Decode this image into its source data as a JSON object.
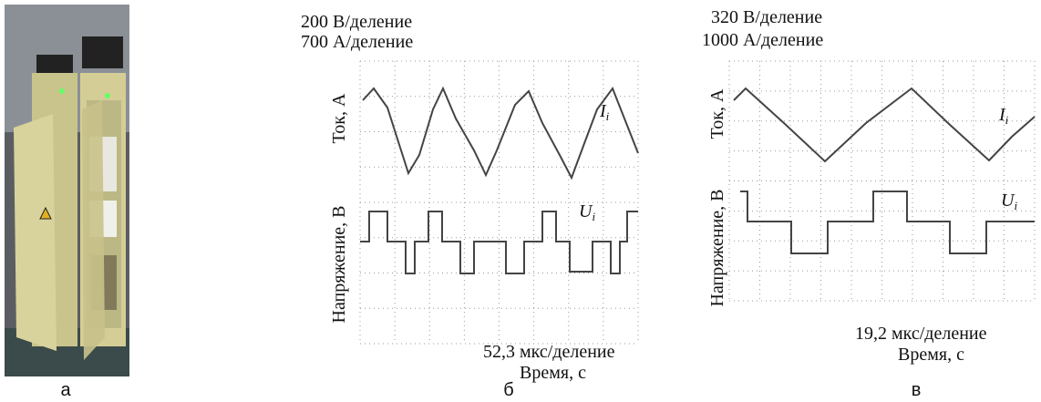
{
  "panel_a": {
    "label": "а"
  },
  "panel_b": {
    "scale_voltage": "200 В/деление",
    "scale_current": "700 А/деление",
    "y_label_current": "Ток, А",
    "y_label_voltage": "Напряжение, В",
    "current_trace": {
      "main": "I",
      "sub": "i"
    },
    "voltage_trace": {
      "main": "U",
      "sub": "i"
    },
    "time_scale": "52,3 мкс/деление",
    "x_label": "Время, с",
    "label": "б"
  },
  "panel_c": {
    "scale_voltage": "320 В/деление",
    "scale_current": "1000 А/деление",
    "y_label_current": "Ток, А",
    "y_label_voltage": "Напряжение, В",
    "current_trace": {
      "main": "I",
      "sub": "i"
    },
    "voltage_trace": {
      "main": "U",
      "sub": "i"
    },
    "time_scale": "19,2 мкс/деление",
    "x_label": "Время, с",
    "label": "в"
  }
}
